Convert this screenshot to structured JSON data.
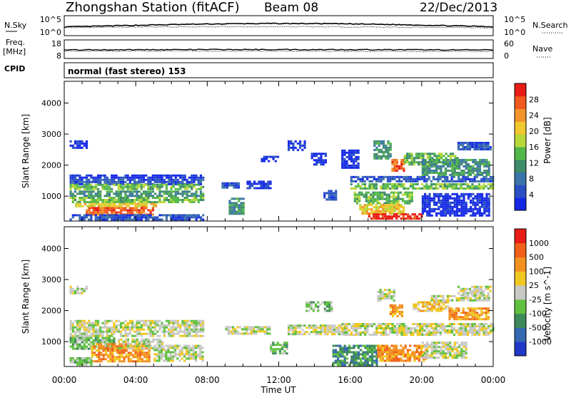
{
  "header": {
    "title": "Zhongshan Station (fitACF)",
    "beam": "Beam 08",
    "date": "22/Dec/2013"
  },
  "noise_panel": {
    "left_label": "N.Sky",
    "left_ticks": [
      "10^5",
      "10^0"
    ],
    "right_label": "N.Search",
    "right_ticks": [
      "10^5",
      "10^0"
    ]
  },
  "freq_panel": {
    "left_label": "Freq.",
    "left_unit": "[MHz]",
    "left_ticks": [
      "18",
      "8"
    ],
    "right_label": "Nave",
    "right_ticks": [
      "60",
      "0"
    ]
  },
  "cpid": {
    "label": "CPID",
    "mode": "normal (fast stereo) 153"
  },
  "time_axis": {
    "title": "Time UT",
    "ticks": [
      "00:00",
      "04:00",
      "08:00",
      "12:00",
      "16:00",
      "20:00",
      "00:00"
    ]
  },
  "chart_data": [
    {
      "type": "heatmap",
      "name": "Power",
      "ylabel": "Slant Range [km]",
      "yticks": [
        1000,
        2000,
        3000,
        4000
      ],
      "ylim": [
        200,
        4700
      ],
      "xlim_hours": [
        0,
        24
      ],
      "colorbar": {
        "label": "Power [dB]",
        "ticks": [
          "4",
          "8",
          "12",
          "16",
          "20",
          "24",
          "28"
        ],
        "colors": [
          "#1428e6",
          "#2a4fc4",
          "#3a74a8",
          "#3f8c6a",
          "#53b84a",
          "#b8d83a",
          "#f0c830",
          "#f2942a",
          "#f05a1e",
          "#e81c14"
        ]
      },
      "regions": [
        {
          "t0": 0.3,
          "t1": 1.2,
          "r0": 2550,
          "r1": 2800,
          "c": 0
        },
        {
          "t0": 0.3,
          "t1": 7.8,
          "r0": 1600,
          "r1": 1700,
          "c": 0
        },
        {
          "t0": 0.3,
          "t1": 7.8,
          "r0": 1420,
          "r1": 1560,
          "c": 1
        },
        {
          "t0": 0.3,
          "t1": 7.8,
          "r0": 1200,
          "r1": 1400,
          "c": 4
        },
        {
          "t0": 0.3,
          "t1": 7.8,
          "r0": 1000,
          "r1": 1180,
          "c": 3
        },
        {
          "t0": 0.3,
          "t1": 7.8,
          "r0": 780,
          "r1": 980,
          "c": 4
        },
        {
          "t0": 0.6,
          "t1": 5.2,
          "r0": 650,
          "r1": 780,
          "c": 6
        },
        {
          "t0": 1.2,
          "t1": 5.0,
          "r0": 420,
          "r1": 650,
          "c": 8
        },
        {
          "t0": 0.3,
          "t1": 7.8,
          "r0": 280,
          "r1": 420,
          "c": 1
        },
        {
          "t0": 8.8,
          "t1": 9.8,
          "r0": 1300,
          "r1": 1450,
          "c": 1
        },
        {
          "t0": 9.2,
          "t1": 10.0,
          "r0": 400,
          "r1": 950,
          "c": 3
        },
        {
          "t0": 10.2,
          "t1": 11.5,
          "r0": 1250,
          "r1": 1500,
          "c": 0
        },
        {
          "t0": 11.0,
          "t1": 12.0,
          "r0": 2100,
          "r1": 2300,
          "c": 0
        },
        {
          "t0": 12.5,
          "t1": 13.5,
          "r0": 2500,
          "r1": 2800,
          "c": 0
        },
        {
          "t0": 13.8,
          "t1": 14.6,
          "r0": 2000,
          "r1": 2400,
          "c": 0
        },
        {
          "t0": 14.5,
          "t1": 15.2,
          "r0": 900,
          "r1": 1200,
          "c": 1
        },
        {
          "t0": 15.5,
          "t1": 16.5,
          "r0": 1900,
          "r1": 2500,
          "c": 0
        },
        {
          "t0": 16.0,
          "t1": 24.0,
          "r0": 1450,
          "r1": 1650,
          "c": 1
        },
        {
          "t0": 16.0,
          "t1": 24.0,
          "r0": 1250,
          "r1": 1420,
          "c": 4
        },
        {
          "t0": 16.2,
          "t1": 19.5,
          "r0": 800,
          "r1": 1150,
          "c": 4
        },
        {
          "t0": 16.5,
          "t1": 19.0,
          "r0": 450,
          "r1": 750,
          "c": 6
        },
        {
          "t0": 17.0,
          "t1": 20.0,
          "r0": 250,
          "r1": 450,
          "c": 9
        },
        {
          "t0": 17.3,
          "t1": 18.3,
          "r0": 2200,
          "r1": 2800,
          "c": 3
        },
        {
          "t0": 18.3,
          "t1": 19.0,
          "r0": 1850,
          "r1": 2200,
          "c": 8
        },
        {
          "t0": 19.0,
          "t1": 22.0,
          "r0": 2000,
          "r1": 2400,
          "c": 4
        },
        {
          "t0": 20.0,
          "t1": 23.8,
          "r0": 1700,
          "r1": 2200,
          "c": 3
        },
        {
          "t0": 22.0,
          "t1": 23.8,
          "r0": 2500,
          "r1": 2750,
          "c": 1
        },
        {
          "t0": 20.0,
          "t1": 23.8,
          "r0": 400,
          "r1": 1100,
          "c": 0
        }
      ]
    },
    {
      "type": "heatmap",
      "name": "Velocity",
      "ylabel": "Slant Range [km]",
      "yticks": [
        1000,
        2000,
        3000,
        4000
      ],
      "ylim": [
        200,
        4700
      ],
      "xlim_hours": [
        0,
        24
      ],
      "colorbar": {
        "label": "Velocity [m s^-1]",
        "ticks": [
          "1000",
          "500",
          "100",
          "25",
          "-25",
          "-100",
          "-500",
          "-1000"
        ],
        "colors": [
          "#2238c8",
          "#3468b0",
          "#3e8a5a",
          "#60c040",
          "#c8c8c4",
          "#f0c820",
          "#f29020",
          "#f06018",
          "#e81c14"
        ]
      },
      "regions": [
        {
          "t0": 0.3,
          "t1": 1.2,
          "r0": 2550,
          "r1": 2800,
          "c": 4
        },
        {
          "t0": 0.3,
          "t1": 7.8,
          "r0": 1200,
          "r1": 1700,
          "c": 4
        },
        {
          "t0": 0.3,
          "t1": 2.8,
          "r0": 800,
          "r1": 1150,
          "c": 3
        },
        {
          "t0": 1.5,
          "t1": 4.8,
          "r0": 350,
          "r1": 950,
          "c": 6
        },
        {
          "t0": 3.0,
          "t1": 5.5,
          "r0": 800,
          "r1": 1100,
          "c": 4
        },
        {
          "t0": 5.0,
          "t1": 7.8,
          "r0": 400,
          "r1": 900,
          "c": 4
        },
        {
          "t0": 0.3,
          "t1": 1.5,
          "r0": 250,
          "r1": 500,
          "c": 3
        },
        {
          "t0": 9.0,
          "t1": 11.5,
          "r0": 1250,
          "r1": 1500,
          "c": 4
        },
        {
          "t0": 11.5,
          "t1": 12.5,
          "r0": 600,
          "r1": 1000,
          "c": 3
        },
        {
          "t0": 12.5,
          "t1": 15.8,
          "r0": 1250,
          "r1": 1550,
          "c": 4
        },
        {
          "t0": 15.5,
          "t1": 24.0,
          "r0": 1250,
          "r1": 1600,
          "c": 4
        },
        {
          "t0": 15.0,
          "t1": 17.5,
          "r0": 250,
          "r1": 900,
          "c": 2
        },
        {
          "t0": 17.5,
          "t1": 20.2,
          "r0": 350,
          "r1": 900,
          "c": 6
        },
        {
          "t0": 17.5,
          "t1": 18.5,
          "r0": 2300,
          "r1": 2700,
          "c": 4
        },
        {
          "t0": 18.2,
          "t1": 18.9,
          "r0": 1850,
          "r1": 2200,
          "c": 6
        },
        {
          "t0": 19.5,
          "t1": 21.5,
          "r0": 2000,
          "r1": 2300,
          "c": 5
        },
        {
          "t0": 21.5,
          "t1": 23.8,
          "r0": 1700,
          "r1": 2100,
          "c": 6
        },
        {
          "t0": 22.0,
          "t1": 23.8,
          "r0": 2500,
          "r1": 2800,
          "c": 4
        },
        {
          "t0": 20.5,
          "t1": 23.8,
          "r0": 2300,
          "r1": 2500,
          "c": 4
        },
        {
          "t0": 20.0,
          "t1": 22.5,
          "r0": 500,
          "r1": 1000,
          "c": 4
        },
        {
          "t0": 13.5,
          "t1": 15.0,
          "r0": 2000,
          "r1": 2300,
          "c": 3
        }
      ]
    }
  ]
}
